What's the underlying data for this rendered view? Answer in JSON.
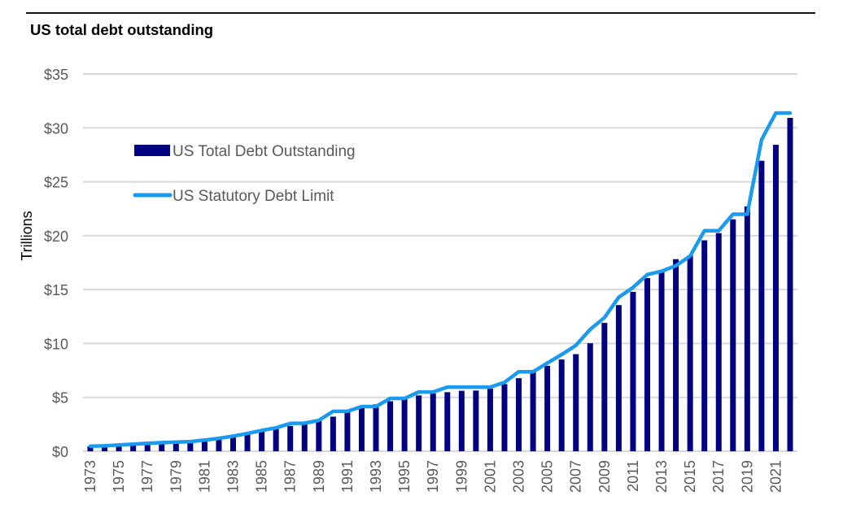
{
  "chart_data": {
    "type": "bar",
    "title": "US total debt outstanding",
    "xlabel": "",
    "ylabel": "Trillions",
    "ylim": [
      0,
      35
    ],
    "grid": true,
    "legend_position": "top-left",
    "y_ticks": [
      {
        "value": 0,
        "label": "$0"
      },
      {
        "value": 5,
        "label": "$5"
      },
      {
        "value": 10,
        "label": "$10"
      },
      {
        "value": 15,
        "label": "$15"
      },
      {
        "value": 20,
        "label": "$20"
      },
      {
        "value": 25,
        "label": "$25"
      },
      {
        "value": 30,
        "label": "$30"
      },
      {
        "value": 35,
        "label": "$35"
      }
    ],
    "x_tick_labels": [
      "1973",
      "1975",
      "1977",
      "1979",
      "1981",
      "1983",
      "1985",
      "1987",
      "1989",
      "1991",
      "1993",
      "1995",
      "1997",
      "1999",
      "2001",
      "2003",
      "2005",
      "2007",
      "2009",
      "2011",
      "2013",
      "2015",
      "2017",
      "2019",
      "2021"
    ],
    "categories": [
      "1973",
      "1974",
      "1975",
      "1976",
      "1977",
      "1978",
      "1979",
      "1980",
      "1981",
      "1982",
      "1983",
      "1984",
      "1985",
      "1986",
      "1987",
      "1988",
      "1989",
      "1990",
      "1991",
      "1992",
      "1993",
      "1994",
      "1995",
      "1996",
      "1997",
      "1998",
      "1999",
      "2000",
      "2001",
      "2002",
      "2003",
      "2004",
      "2005",
      "2006",
      "2007",
      "2008",
      "2009",
      "2010",
      "2011",
      "2012",
      "2013",
      "2014",
      "2015",
      "2016",
      "2017",
      "2018",
      "2019",
      "2020",
      "2021",
      "2022"
    ],
    "series": [
      {
        "name": "US Total Debt Outstanding",
        "type": "bar",
        "color": "#000080",
        "values": [
          0.46,
          0.48,
          0.54,
          0.63,
          0.7,
          0.78,
          0.83,
          0.91,
          1.0,
          1.14,
          1.37,
          1.57,
          1.82,
          2.13,
          2.35,
          2.6,
          2.87,
          3.21,
          3.6,
          4.0,
          4.35,
          4.64,
          4.92,
          5.18,
          5.37,
          5.48,
          5.61,
          5.63,
          5.81,
          6.23,
          6.78,
          7.38,
          7.93,
          8.51,
          9.01,
          10.02,
          11.91,
          13.56,
          14.79,
          16.07,
          16.74,
          17.82,
          18.15,
          19.57,
          20.24,
          21.52,
          22.72,
          26.95,
          28.43,
          30.93
        ]
      },
      {
        "name": "US Statutory Debt Limit",
        "type": "line",
        "color": "#1a9bf0",
        "values": [
          0.47,
          0.5,
          0.58,
          0.66,
          0.73,
          0.8,
          0.85,
          0.9,
          1.03,
          1.2,
          1.4,
          1.65,
          1.93,
          2.17,
          2.58,
          2.6,
          2.87,
          3.7,
          3.7,
          4.15,
          4.15,
          4.9,
          4.9,
          5.5,
          5.5,
          5.95,
          5.95,
          5.95,
          5.95,
          6.4,
          7.38,
          7.38,
          8.18,
          8.97,
          9.82,
          11.31,
          12.39,
          14.29,
          15.19,
          16.39,
          16.7,
          17.21,
          18.11,
          20.46,
          20.46,
          21.99,
          21.99,
          28.9,
          31.38,
          31.38
        ]
      }
    ]
  }
}
